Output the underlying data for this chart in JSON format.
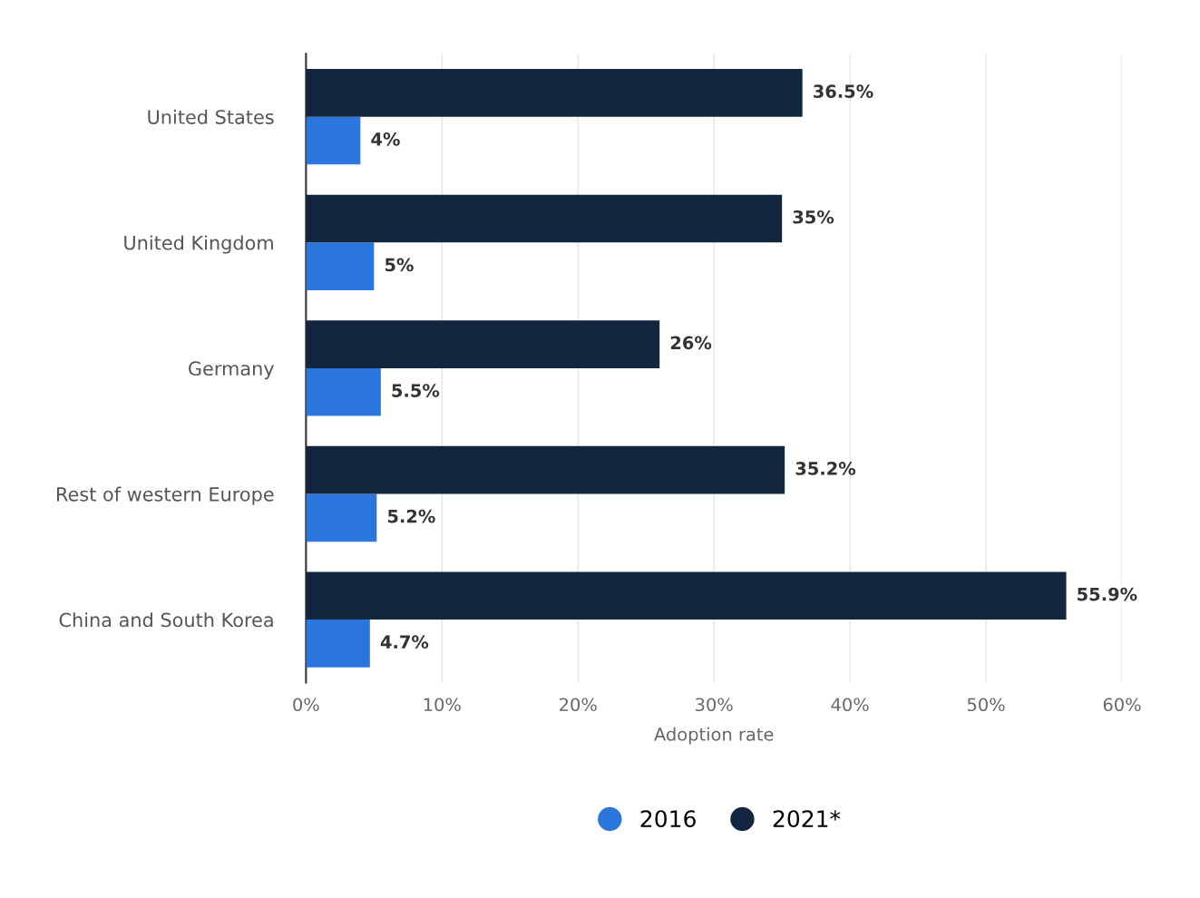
{
  "chart_data": {
    "type": "bar",
    "orientation": "horizontal",
    "xlabel": "Adoption rate",
    "categories": [
      "United States",
      "United Kingdom",
      "Germany",
      "Rest of western Europe",
      "China and South Korea"
    ],
    "series": [
      {
        "name": "2016",
        "color": "#2a76dd",
        "values": [
          4,
          5,
          5.5,
          5.2,
          4.7
        ],
        "value_labels": [
          "4%",
          "5%",
          "5.5%",
          "5.2%",
          "4.7%"
        ]
      },
      {
        "name": "2021*",
        "color": "#12263f",
        "values": [
          36.5,
          35,
          26,
          35.2,
          55.9
        ],
        "value_labels": [
          "36.5%",
          "35%",
          "26%",
          "35.2%",
          "55.9%"
        ]
      }
    ],
    "xlim": [
      0,
      60
    ],
    "xticks": [
      {
        "value": 0,
        "label": "0%"
      },
      {
        "value": 10,
        "label": "10%"
      },
      {
        "value": 20,
        "label": "20%"
      },
      {
        "value": 30,
        "label": "30%"
      },
      {
        "value": 40,
        "label": "40%"
      },
      {
        "value": 50,
        "label": "50%"
      },
      {
        "value": 60,
        "label": "60%"
      }
    ],
    "grid": "x",
    "legend": "bottom"
  }
}
